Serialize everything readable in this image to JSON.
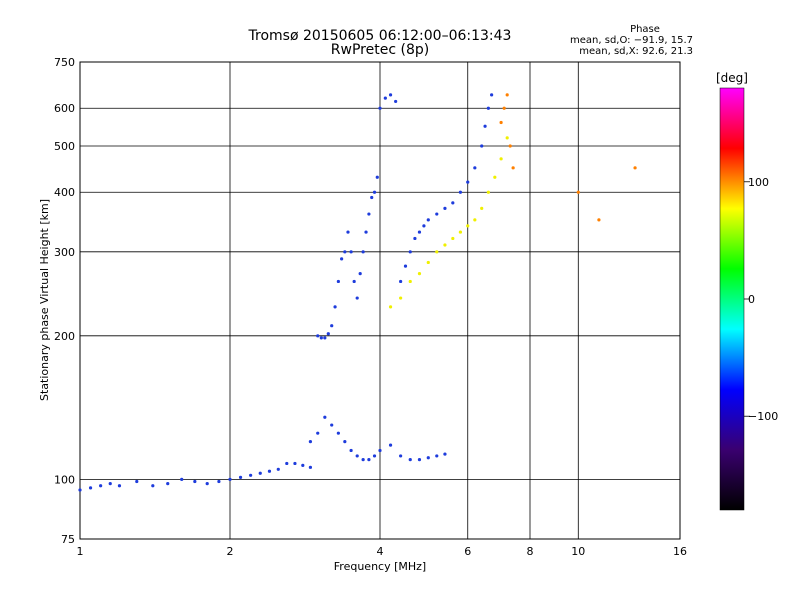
{
  "chart_data": {
    "type": "scatter",
    "title": "Tromsø 20150605 06:12:00–06:13:43",
    "subtitle": "RwPretec (8p)",
    "xlabel": "Frequency [MHz]",
    "ylabel": "Stationary phase Virtual Height [km]",
    "x_scale": "log",
    "y_scale": "log",
    "xlim": [
      1,
      16
    ],
    "ylim": [
      75,
      750
    ],
    "x_ticks": [
      1,
      2,
      4,
      6,
      8,
      10,
      16
    ],
    "x_tick_labels": [
      "1",
      "2",
      "4",
      "6",
      "8",
      "10",
      "16"
    ],
    "y_ticks": [
      75,
      100,
      200,
      300,
      400,
      500,
      600,
      750
    ],
    "y_tick_labels": [
      "75",
      "100",
      "200",
      "300",
      "400",
      "500",
      "600",
      "750"
    ],
    "grid": true,
    "phase_legend": {
      "title": "Phase",
      "line1": "mean, sd,O: −91.9, 15.7",
      "line2": "mean, sd,X:  92.6, 21.3"
    },
    "colorbar": {
      "title": "[deg]",
      "tick_labels": [
        "100",
        "0",
        "−100"
      ],
      "tick_values": [
        100,
        0,
        -100
      ],
      "range": [
        -180,
        180
      ],
      "colors": [
        "#000000",
        "#3a0070",
        "#0000ff",
        "#00ffff",
        "#00ff00",
        "#ffff00",
        "#ff0000",
        "#ff00ff"
      ]
    },
    "series": [
      {
        "marker_color": "#1e3cdc",
        "x": [
          1.0,
          1.05,
          1.1,
          1.15,
          1.2,
          1.3,
          1.4,
          1.5,
          1.6,
          1.7,
          1.8,
          1.9,
          2.0,
          2.1,
          2.2,
          2.3,
          2.4,
          2.5,
          2.6,
          2.7,
          2.8,
          2.9,
          3.0,
          3.05,
          3.1,
          3.15,
          3.2,
          3.25,
          3.3,
          3.35,
          3.4,
          3.45,
          3.5,
          3.55,
          3.6,
          3.65,
          3.7,
          3.75,
          3.8,
          3.85,
          3.9,
          3.95,
          4.0,
          4.1,
          4.2,
          4.3,
          4.4,
          4.5,
          4.6,
          4.7,
          4.8,
          4.9,
          5.0,
          5.2,
          5.4,
          5.6,
          5.8,
          6.0,
          6.2,
          6.4,
          6.5,
          6.6,
          6.7
        ],
        "y": [
          95,
          96,
          97,
          98,
          97,
          99,
          97,
          98,
          100,
          99,
          98,
          99,
          100,
          101,
          102,
          103,
          104,
          105,
          108,
          108,
          107,
          106,
          200,
          198,
          198,
          202,
          210,
          230,
          260,
          290,
          300,
          330,
          300,
          260,
          240,
          270,
          300,
          330,
          360,
          390,
          400,
          430,
          600,
          630,
          640,
          620,
          260,
          280,
          300,
          320,
          330,
          340,
          350,
          360,
          370,
          380,
          400,
          420,
          450,
          500,
          550,
          600,
          640
        ],
        "phase_deg": -100
      },
      {
        "marker_color": "#1e3cdc",
        "x": [
          2.9,
          3.0,
          3.1,
          3.2,
          3.3,
          3.4,
          3.5,
          3.6,
          3.7,
          3.8,
          3.9,
          4.0,
          4.2,
          4.4,
          4.6,
          4.8,
          5.0,
          5.2,
          5.4
        ],
        "y": [
          120,
          125,
          135,
          130,
          125,
          120,
          115,
          112,
          110,
          110,
          112,
          115,
          118,
          112,
          110,
          110,
          111,
          112,
          113
        ],
        "phase_deg": -100
      },
      {
        "marker_color": "#f0f000",
        "x": [
          4.2,
          4.4,
          4.6,
          4.8,
          5.0,
          5.2,
          5.4,
          5.6,
          5.8,
          6.0,
          6.2,
          6.4,
          6.6,
          6.8,
          7.0,
          7.2
        ],
        "y": [
          230,
          240,
          260,
          270,
          285,
          300,
          310,
          320,
          330,
          340,
          350,
          370,
          400,
          430,
          470,
          520
        ],
        "phase_deg": 100
      },
      {
        "marker_color": "#ff8000",
        "x": [
          7.0,
          7.1,
          7.2,
          7.3,
          7.4,
          10.0,
          11.0,
          13.0
        ],
        "y": [
          560,
          600,
          640,
          500,
          450,
          400,
          350,
          450
        ],
        "phase_deg": 150
      }
    ]
  }
}
